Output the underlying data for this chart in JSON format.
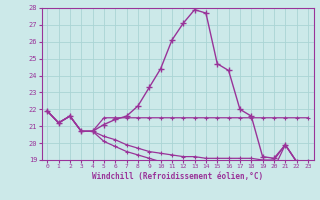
{
  "xlabel": "Windchill (Refroidissement éolien,°C)",
  "xlim": [
    -0.5,
    23.5
  ],
  "ylim": [
    19,
    28
  ],
  "yticks": [
    19,
    20,
    21,
    22,
    23,
    24,
    25,
    26,
    27,
    28
  ],
  "xticks": [
    0,
    1,
    2,
    3,
    4,
    5,
    6,
    7,
    8,
    9,
    10,
    11,
    12,
    13,
    14,
    15,
    16,
    17,
    18,
    19,
    20,
    21,
    22,
    23
  ],
  "bg_color": "#cce9e9",
  "grid_color": "#aad4d4",
  "line_color": "#993399",
  "series0_x": [
    0,
    1,
    2,
    3,
    4,
    5,
    6,
    7,
    8,
    9,
    10,
    11,
    12,
    13,
    14,
    15,
    16,
    17,
    18,
    19,
    20,
    21,
    22,
    23
  ],
  "series0_y": [
    21.9,
    21.2,
    21.6,
    20.7,
    20.7,
    21.1,
    21.4,
    21.6,
    22.2,
    23.3,
    24.4,
    26.1,
    27.1,
    27.9,
    27.7,
    24.7,
    24.3,
    22.0,
    21.6,
    19.2,
    19.1,
    19.9,
    18.9,
    18.9
  ],
  "series1_x": [
    0,
    1,
    2,
    3,
    4,
    5,
    6,
    7,
    8,
    9,
    10,
    11,
    12,
    13,
    14,
    15,
    16,
    17,
    18,
    19,
    20,
    21,
    22,
    23
  ],
  "series1_y": [
    21.9,
    21.2,
    21.6,
    20.7,
    20.7,
    21.5,
    21.5,
    21.5,
    21.5,
    21.5,
    21.5,
    21.5,
    21.5,
    21.5,
    21.5,
    21.5,
    21.5,
    21.5,
    21.5,
    21.5,
    21.5,
    21.5,
    21.5,
    21.5
  ],
  "series2_x": [
    0,
    1,
    2,
    3,
    4,
    5,
    6,
    7,
    8,
    9,
    10,
    11,
    12,
    13,
    14,
    15,
    16,
    17,
    18,
    19,
    20,
    21,
    22,
    23
  ],
  "series2_y": [
    21.9,
    21.2,
    21.6,
    20.7,
    20.7,
    20.4,
    20.2,
    19.9,
    19.7,
    19.5,
    19.4,
    19.3,
    19.2,
    19.2,
    19.1,
    19.1,
    19.1,
    19.1,
    19.1,
    19.0,
    19.0,
    19.9,
    18.9,
    18.9
  ],
  "series3_x": [
    0,
    1,
    2,
    3,
    4,
    5,
    6,
    7,
    8,
    9,
    10,
    11,
    12,
    13,
    14,
    15,
    16,
    17,
    18,
    19,
    20,
    21,
    22,
    23
  ],
  "series3_y": [
    21.9,
    21.2,
    21.6,
    20.7,
    20.7,
    20.1,
    19.8,
    19.5,
    19.3,
    19.1,
    18.9,
    18.9,
    18.8,
    18.7,
    18.6,
    18.5,
    18.5,
    18.5,
    18.5,
    18.5,
    18.5,
    19.9,
    18.9,
    18.9
  ]
}
